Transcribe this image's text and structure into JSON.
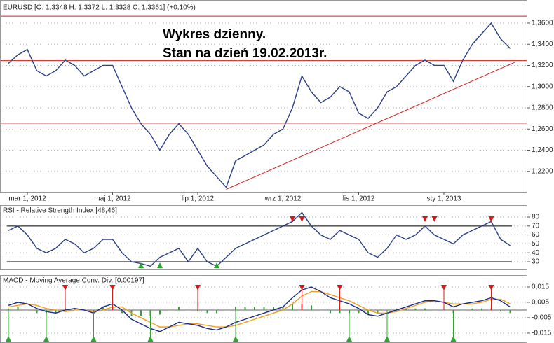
{
  "chart_data": [
    {
      "type": "line",
      "title": "EURUSD [O: 1,3348  H: 1,3372  L: 1,3328  C: 1,3361] (+0,10%)",
      "annotations": [
        "Wykres dzienny.",
        "Stan na dzień 19.02.2013r."
      ],
      "categories": [
        null,
        null,
        "mar 1, 2012",
        null,
        null,
        null,
        null,
        null,
        null,
        null,
        null,
        "maj 1, 2012",
        null,
        null,
        null,
        null,
        null,
        null,
        null,
        null,
        "lip 1, 2012",
        null,
        null,
        null,
        null,
        null,
        null,
        null,
        null,
        "wrz 1, 2012",
        null,
        null,
        null,
        null,
        null,
        null,
        null,
        "lis 1, 2012",
        null,
        null,
        null,
        null,
        null,
        null,
        null,
        null,
        "sty 1, 2013",
        null,
        null,
        null,
        null,
        null,
        null,
        null
      ],
      "values": [
        1.322,
        1.33,
        1.335,
        1.315,
        1.31,
        1.315,
        1.325,
        1.32,
        1.31,
        1.315,
        1.32,
        1.32,
        1.3,
        1.28,
        1.265,
        1.255,
        1.24,
        1.255,
        1.265,
        1.255,
        1.24,
        1.225,
        1.215,
        1.205,
        1.23,
        1.235,
        1.24,
        1.245,
        1.255,
        1.26,
        1.28,
        1.31,
        1.295,
        1.285,
        1.29,
        1.3,
        1.295,
        1.275,
        1.27,
        1.28,
        1.295,
        1.3,
        1.31,
        1.32,
        1.325,
        1.32,
        1.32,
        1.305,
        1.325,
        1.34,
        1.35,
        1.36,
        1.345,
        1.336
      ],
      "color": "#2a3f86",
      "hlines": [
        1.3665,
        1.3245,
        1.2655
      ],
      "hline_color": "#d42020",
      "trendline": {
        "x": [
          23,
          53.5
        ],
        "y": [
          1.203,
          1.323
        ]
      },
      "ylim": [
        1.202,
        1.3699
      ],
      "yticks": [
        {
          "value": 1.22,
          "label": "1,2200"
        },
        {
          "value": 1.24,
          "label": "1,2400"
        },
        {
          "value": 1.26,
          "label": "1,2600"
        },
        {
          "value": 1.28,
          "label": "1,2800"
        },
        {
          "value": 1.3,
          "label": "1,3000"
        },
        {
          "value": 1.32,
          "label": "1,3200"
        },
        {
          "value": 1.34,
          "label": "1,3400"
        },
        {
          "value": 1.36,
          "label": "1,3600"
        }
      ],
      "grid": true
    },
    {
      "type": "line",
      "title": "RSI - Relative Strength Index [48,46]",
      "values": [
        65,
        70,
        60,
        45,
        40,
        45,
        55,
        50,
        40,
        45,
        55,
        55,
        40,
        30,
        28,
        25,
        35,
        40,
        45,
        30,
        45,
        30,
        25,
        35,
        45,
        50,
        55,
        60,
        65,
        70,
        75,
        85,
        70,
        60,
        55,
        65,
        60,
        55,
        40,
        35,
        45,
        60,
        55,
        60,
        70,
        60,
        55,
        50,
        60,
        65,
        70,
        75,
        55,
        48
      ],
      "color": "#2a3f86",
      "levels": [
        30,
        70
      ],
      "sell_signals": [
        30,
        31,
        44,
        45,
        51
      ],
      "buy_signals": [
        14,
        16,
        22
      ],
      "ylim": [
        21.4,
        93.3
      ],
      "yticks": [
        30,
        40,
        50,
        60,
        70,
        80
      ],
      "grid": true
    },
    {
      "type": "macd",
      "title": "MACD - Moving Average Conv. Div. [0,00197]",
      "series": [
        {
          "color": "#1a2a8a",
          "values": [
            0.003,
            0.005,
            0.004,
            0.001,
            -0.001,
            -0.002,
            0,
            0.001,
            0,
            -0.002,
            0.002,
            0.004,
            0,
            -0.006,
            -0.009,
            -0.012,
            -0.014,
            -0.011,
            -0.008,
            -0.009,
            -0.01,
            -0.012,
            -0.013,
            -0.011,
            -0.008,
            -0.006,
            -0.004,
            -0.002,
            0,
            0.002,
            0.008,
            0.013,
            0.015,
            0.012,
            0.008,
            0.006,
            0.004,
            0.001,
            -0.003,
            -0.004,
            -0.002,
            0,
            0.002,
            0.004,
            0.006,
            0.006,
            0.005,
            0.002,
            0.004,
            0.005,
            0.006,
            0.008,
            0.006,
            0.002
          ]
        },
        {
          "color": "#f0a020",
          "values": [
            0.002,
            0.003,
            0.004,
            0.003,
            0.001,
            0,
            -0.001,
            0,
            0,
            -0.001,
            0,
            0.002,
            0.002,
            -0.002,
            -0.005,
            -0.008,
            -0.011,
            -0.011,
            -0.01,
            -0.009,
            -0.009,
            -0.01,
            -0.011,
            -0.011,
            -0.01,
            -0.008,
            -0.006,
            -0.004,
            -0.002,
            0,
            0.004,
            0.009,
            0.012,
            0.012,
            0.01,
            0.008,
            0.006,
            0.003,
            0,
            -0.002,
            -0.002,
            -0.001,
            0.001,
            0.003,
            0.005,
            0.006,
            0.005,
            0.004,
            0.004,
            0.004,
            0.005,
            0.007,
            0.007,
            0.004
          ]
        }
      ],
      "histogram": {
        "color": "#3aa23a",
        "values": [
          0.001,
          0.002,
          0,
          -0.002,
          -0.002,
          -0.002,
          0.001,
          0.001,
          0,
          -0.001,
          0.002,
          0.002,
          -0.002,
          -0.004,
          -0.004,
          -0.004,
          -0.003,
          0,
          0.002,
          0,
          -0.001,
          -0.002,
          -0.002,
          0,
          0.002,
          0.002,
          0.002,
          0.002,
          0.002,
          0.002,
          0.004,
          0.004,
          0.003,
          0,
          -0.002,
          -0.002,
          -0.002,
          -0.002,
          -0.003,
          -0.002,
          0,
          0.001,
          0.001,
          0.001,
          0.001,
          0,
          0,
          -0.002,
          0,
          0.001,
          0.001,
          0.001,
          -0.001,
          -0.002
        ]
      },
      "sell_signals": [
        6,
        11,
        20,
        31,
        35,
        46,
        51
      ],
      "buy_signals": [
        0,
        4,
        9,
        15,
        24,
        36,
        40,
        47
      ],
      "ylim": [
        -0.0214,
        0.0218
      ],
      "yticks": [
        {
          "value": -0.015,
          "label": "-0,015"
        },
        {
          "value": -0.005,
          "label": "-0,005"
        },
        {
          "value": 0.005,
          "label": "0,005"
        },
        {
          "value": 0.015,
          "label": "0,015"
        }
      ],
      "grid": true
    }
  ]
}
